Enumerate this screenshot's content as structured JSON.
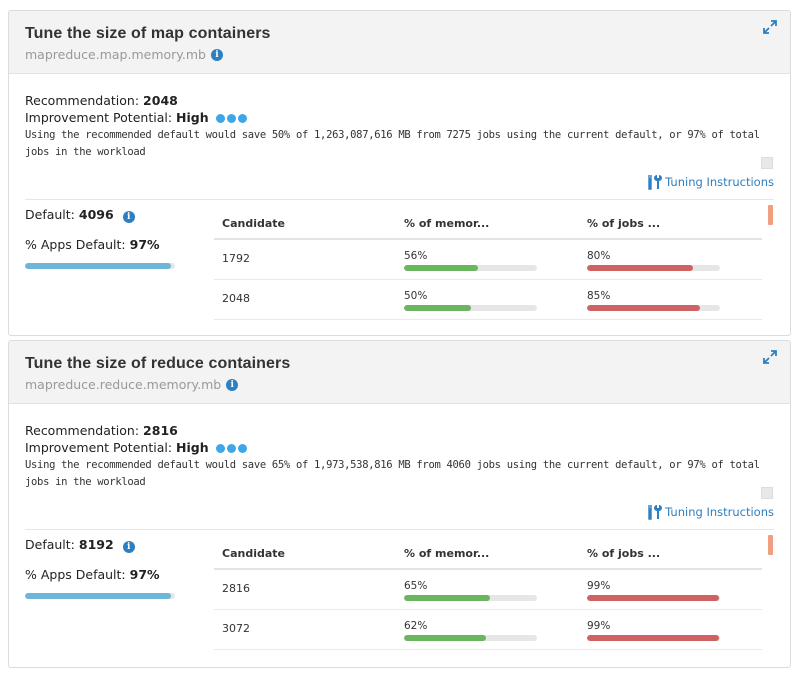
{
  "cards": [
    {
      "title": "Tune the size of map containers",
      "param": "mapreduce.map.memory.mb",
      "recommendation_label": "Recommendation:",
      "recommendation_value": "2048",
      "improvement_label": "Improvement Potential:",
      "improvement_value": "High",
      "description": "Using the recommended default would save 50% of 1,263,087,616 MB from 7275 jobs using the current default, or 97% of total jobs in the workload",
      "tuning_label": "Tuning Instructions",
      "default_label": "Default:",
      "default_value": "4096",
      "apps_default_label": "% Apps Default:",
      "apps_default_value": "97%",
      "apps_default_fraction": 0.97,
      "table": {
        "headers": [
          "Candidate",
          "% of memor...",
          "% of jobs ..."
        ],
        "rows": [
          {
            "candidate": "1792",
            "mem": "56%",
            "mem_frac": 0.56,
            "jobs": "80%",
            "jobs_frac": 0.8
          },
          {
            "candidate": "2048",
            "mem": "50%",
            "mem_frac": 0.5,
            "jobs": "85%",
            "jobs_frac": 0.85
          }
        ]
      }
    },
    {
      "title": "Tune the size of reduce containers",
      "param": "mapreduce.reduce.memory.mb",
      "recommendation_label": "Recommendation:",
      "recommendation_value": "2816",
      "improvement_label": "Improvement Potential:",
      "improvement_value": "High",
      "description": "Using the recommended default would save 65% of 1,973,538,816 MB from 4060 jobs using the current default, or 97% of total jobs in the workload",
      "tuning_label": "Tuning Instructions",
      "default_label": "Default:",
      "default_value": "8192",
      "apps_default_label": "% Apps Default:",
      "apps_default_value": "97%",
      "apps_default_fraction": 0.97,
      "table": {
        "headers": [
          "Candidate",
          "% of memor...",
          "% of jobs ..."
        ],
        "rows": [
          {
            "candidate": "2816",
            "mem": "65%",
            "mem_frac": 0.65,
            "jobs": "99%",
            "jobs_frac": 0.99
          },
          {
            "candidate": "3072",
            "mem": "62%",
            "mem_frac": 0.62,
            "jobs": "99%",
            "jobs_frac": 0.99
          }
        ]
      }
    }
  ],
  "colors": {
    "accent_blue": "#2d7fc1",
    "dot_blue": "#3ea6e6",
    "bar_green": "#6ab65e",
    "bar_red": "#cf6262",
    "bar_apps": "#6db5d9"
  },
  "icons": [
    "expand-icon",
    "info-icon",
    "tools-icon",
    "potential-dot"
  ]
}
